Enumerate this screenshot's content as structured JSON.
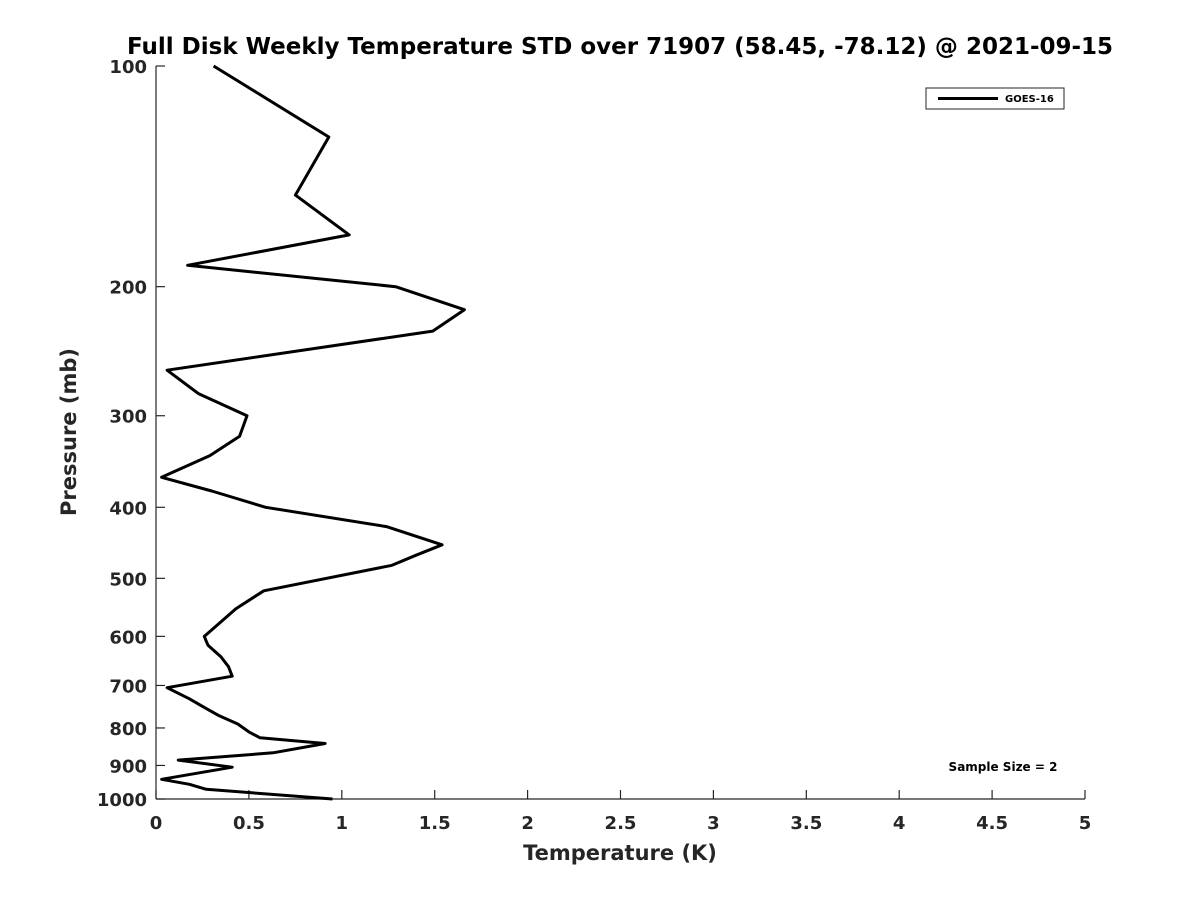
{
  "chart_data": {
    "type": "line",
    "title": "Full Disk Weekly Temperature STD over 71907 (58.45, -78.12) @ 2021-09-15",
    "xlabel": "Temperature (K)",
    "ylabel": "Pressure (mb)",
    "xlim": [
      0,
      5
    ],
    "ylim": [
      1000,
      100
    ],
    "yscale": "log",
    "y_reversed": true,
    "xticks": [
      0,
      0.5,
      1,
      1.5,
      2,
      2.5,
      3,
      3.5,
      4,
      4.5,
      5
    ],
    "xtick_labels": [
      "0",
      "0.5",
      "1",
      "1.5",
      "2",
      "2.5",
      "3",
      "3.5",
      "4",
      "4.5",
      "5"
    ],
    "yticks": [
      100,
      200,
      300,
      400,
      500,
      600,
      700,
      800,
      900,
      1000
    ],
    "ytick_labels": [
      "100",
      "200",
      "300",
      "400",
      "500",
      "600",
      "700",
      "800",
      "900",
      "1000"
    ],
    "grid": false,
    "legend_position": "top-right",
    "series": [
      {
        "name": "GOES-16",
        "color": "#000000",
        "points": [
          [
            0.31,
            100
          ],
          [
            0.93,
            125
          ],
          [
            0.75,
            150
          ],
          [
            1.04,
            170
          ],
          [
            0.17,
            187
          ],
          [
            1.29,
            200
          ],
          [
            1.66,
            215
          ],
          [
            1.49,
            230
          ],
          [
            0.06,
            260
          ],
          [
            0.23,
            280
          ],
          [
            0.49,
            300
          ],
          [
            0.45,
            320
          ],
          [
            0.29,
            340
          ],
          [
            0.03,
            364
          ],
          [
            0.3,
            380
          ],
          [
            0.59,
            400
          ],
          [
            1.24,
            425
          ],
          [
            1.54,
            450
          ],
          [
            1.4,
            465
          ],
          [
            1.27,
            480
          ],
          [
            0.58,
            520
          ],
          [
            0.43,
            550
          ],
          [
            0.36,
            570
          ],
          [
            0.26,
            600
          ],
          [
            0.28,
            617
          ],
          [
            0.35,
            640
          ],
          [
            0.39,
            660
          ],
          [
            0.41,
            680
          ],
          [
            0.06,
            705
          ],
          [
            0.18,
            730
          ],
          [
            0.26,
            750
          ],
          [
            0.34,
            770
          ],
          [
            0.44,
            790
          ],
          [
            0.5,
            810
          ],
          [
            0.56,
            825
          ],
          [
            0.91,
            840
          ],
          [
            0.63,
            865
          ],
          [
            0.12,
            885
          ],
          [
            0.41,
            905
          ],
          [
            0.03,
            940
          ],
          [
            0.18,
            955
          ],
          [
            0.27,
            970
          ],
          [
            0.95,
            1000
          ]
        ]
      }
    ],
    "annotation": "Sample Size = 2"
  }
}
